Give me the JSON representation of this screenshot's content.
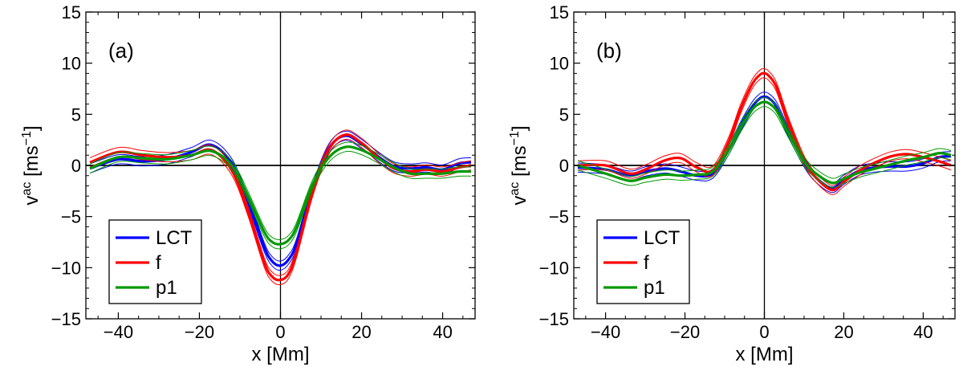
{
  "chart_data": [
    {
      "type": "line",
      "panel_label": "(a)",
      "xlabel": "x [Mm]",
      "ylabel_base": "v",
      "ylabel_sup": "ac",
      "ylabel_unit_open": " [ms",
      "ylabel_unit_sup": "−1",
      "ylabel_unit_close": "]",
      "xlim": [
        -48,
        48
      ],
      "ylim": [
        -15,
        15
      ],
      "xticks": [
        -40,
        -20,
        0,
        20,
        40
      ],
      "xtick_labels": [
        "−40",
        "−20",
        "0",
        "20",
        "40"
      ],
      "yticks": [
        -15,
        -10,
        -5,
        0,
        5,
        10,
        15
      ],
      "ytick_labels": [
        "−15",
        "−10",
        "−5",
        "0",
        "5",
        "10",
        "15"
      ],
      "legend": [
        "LCT",
        "f",
        "p1"
      ],
      "legend_position": "bottom-left",
      "reference_lines": {
        "x": 0,
        "y": 0
      },
      "x": [
        -47,
        -40,
        -34,
        -28,
        -22,
        -17,
        -12,
        -8,
        -4,
        -2,
        0,
        2,
        4,
        8,
        12,
        16,
        20,
        24,
        28,
        32,
        36,
        40,
        44,
        47
      ],
      "series": [
        {
          "name": "LCT",
          "color": "#0000ff",
          "error": 0.45,
          "values": [
            -0.3,
            0.6,
            0.4,
            0.6,
            1.3,
            2.0,
            0.2,
            -3.5,
            -8.0,
            -9.4,
            -9.8,
            -9.2,
            -7.6,
            -2.2,
            1.7,
            2.9,
            2.1,
            0.9,
            -0.1,
            -0.3,
            -0.2,
            -0.4,
            0.2,
            0.3
          ]
        },
        {
          "name": "f",
          "color": "#ff0000",
          "error": 0.45,
          "values": [
            0.3,
            1.3,
            1.0,
            0.8,
            1.0,
            1.5,
            -0.5,
            -4.5,
            -9.5,
            -10.9,
            -11.2,
            -10.6,
            -8.5,
            -2.5,
            1.6,
            3.0,
            2.2,
            0.8,
            -0.3,
            -0.6,
            -0.4,
            -0.6,
            -0.2,
            0.0
          ]
        },
        {
          "name": "p1",
          "color": "#009900",
          "error": 0.45,
          "values": [
            -0.3,
            0.8,
            0.7,
            0.6,
            1.0,
            1.4,
            0.0,
            -3.0,
            -6.5,
            -7.5,
            -7.7,
            -7.3,
            -6.0,
            -1.8,
            0.8,
            1.8,
            1.5,
            0.7,
            -0.2,
            -0.8,
            -0.8,
            -0.8,
            -0.6,
            -0.6
          ]
        }
      ]
    },
    {
      "type": "line",
      "panel_label": "(b)",
      "xlabel": "x [Mm]",
      "ylabel_base": "v",
      "ylabel_sup": "ac",
      "ylabel_unit_open": " [ms",
      "ylabel_unit_sup": "−1",
      "ylabel_unit_close": "]",
      "xlim": [
        -48,
        48
      ],
      "ylim": [
        -15,
        15
      ],
      "xticks": [
        -40,
        -20,
        0,
        20,
        40
      ],
      "xtick_labels": [
        "−40",
        "−20",
        "0",
        "20",
        "40"
      ],
      "yticks": [
        -15,
        -10,
        -5,
        0,
        5,
        10,
        15
      ],
      "ytick_labels": [
        "−15",
        "−10",
        "−5",
        "0",
        "5",
        "10",
        "15"
      ],
      "legend": [
        "LCT",
        "f",
        "p1"
      ],
      "legend_position": "bottom-left",
      "reference_lines": {
        "x": 0,
        "y": 0
      },
      "x": [
        -47,
        -40,
        -34,
        -30,
        -25,
        -21,
        -17,
        -13,
        -9,
        -6,
        -3,
        -1,
        0,
        1,
        3,
        6,
        10,
        13,
        17,
        20,
        24,
        28,
        32,
        36,
        40,
        44,
        47
      ],
      "series": [
        {
          "name": "LCT",
          "color": "#0000ff",
          "error": 0.45,
          "values": [
            -0.2,
            -0.4,
            -1.0,
            -0.6,
            -0.3,
            -0.6,
            -1.0,
            -0.8,
            1.5,
            3.8,
            5.8,
            6.6,
            6.7,
            6.6,
            5.8,
            3.3,
            0.3,
            -1.2,
            -2.2,
            -1.4,
            -0.5,
            -0.2,
            -0.1,
            -0.1,
            0.2,
            0.8,
            0.9
          ]
        },
        {
          "name": "f",
          "color": "#ff0000",
          "error": 0.45,
          "values": [
            0.0,
            0.0,
            -0.8,
            -0.4,
            0.5,
            0.7,
            -0.2,
            -0.5,
            2.3,
            5.5,
            8.0,
            8.9,
            9.0,
            8.8,
            7.7,
            4.3,
            0.5,
            -1.2,
            -2.4,
            -1.6,
            -0.5,
            0.3,
            0.9,
            1.1,
            0.8,
            0.4,
            0.0
          ]
        },
        {
          "name": "p1",
          "color": "#009900",
          "error": 0.45,
          "values": [
            0.0,
            -0.8,
            -1.5,
            -1.2,
            -0.9,
            -1.0,
            -0.9,
            -0.6,
            1.5,
            3.7,
            5.5,
            6.1,
            6.2,
            6.1,
            5.4,
            3.2,
            0.4,
            -0.8,
            -1.7,
            -1.3,
            -0.7,
            -0.3,
            0.1,
            0.5,
            0.8,
            1.2,
            1.0
          ]
        }
      ]
    }
  ]
}
